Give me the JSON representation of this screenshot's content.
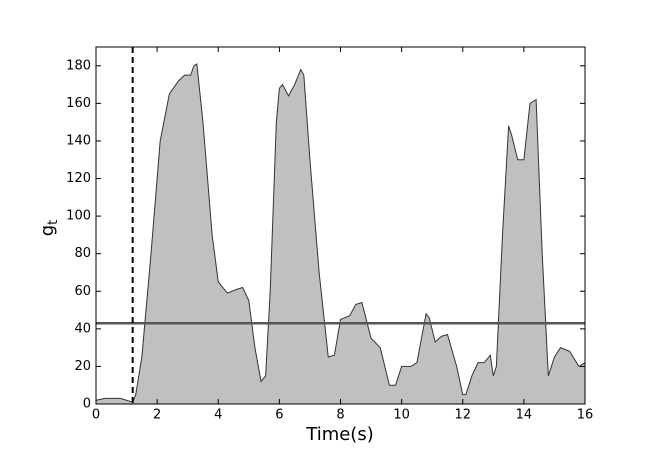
{
  "chart_data": {
    "type": "area",
    "x_label": "Time(s)",
    "y_label": "g",
    "y_label_sub": "t",
    "x": [
      0,
      0.3,
      0.8,
      1.0,
      1.2,
      1.3,
      1.5,
      1.8,
      2.1,
      2.4,
      2.7,
      2.9,
      3.1,
      3.2,
      3.3,
      3.5,
      3.8,
      4.0,
      4.3,
      4.6,
      4.8,
      5.0,
      5.2,
      5.4,
      5.55,
      5.7,
      5.9,
      6.0,
      6.1,
      6.3,
      6.5,
      6.7,
      6.8,
      7.0,
      7.3,
      7.5,
      7.6,
      7.8,
      8.0,
      8.3,
      8.5,
      8.7,
      9.0,
      9.3,
      9.6,
      9.8,
      10.0,
      10.3,
      10.5,
      10.8,
      10.9,
      11.1,
      11.3,
      11.5,
      11.8,
      12.0,
      12.1,
      12.3,
      12.5,
      12.7,
      12.9,
      13.0,
      13.1,
      13.3,
      13.5,
      13.6,
      13.8,
      14.0,
      14.2,
      14.4,
      14.6,
      14.8,
      15.0,
      15.2,
      15.5,
      15.8,
      16
    ],
    "values": [
      2,
      3,
      3,
      2,
      1,
      5,
      25,
      80,
      140,
      165,
      172,
      175,
      175,
      180,
      181,
      150,
      90,
      65,
      59,
      61,
      62,
      55,
      30,
      12,
      15,
      60,
      150,
      168,
      170,
      164,
      170,
      178,
      175,
      130,
      70,
      40,
      25,
      26,
      45,
      47,
      53,
      54,
      35,
      30,
      10,
      10,
      20,
      20,
      22,
      48,
      46,
      33,
      36,
      37,
      20,
      5,
      5,
      15,
      22,
      22,
      26,
      15,
      20,
      90,
      148,
      143,
      130,
      130,
      160,
      162,
      80,
      15,
      25,
      30,
      28,
      20,
      22
    ],
    "fill": "#c0c0c0",
    "line_color": "#333333",
    "hline": 43,
    "hline_color": "#555555",
    "vline": 1.2,
    "vline_color": "#000000",
    "xlim": [
      0,
      16
    ],
    "xticks": [
      0,
      2,
      4,
      6,
      8,
      10,
      12,
      14,
      16
    ],
    "ylim": [
      0,
      190
    ],
    "yticks": [
      0,
      20,
      40,
      60,
      80,
      100,
      120,
      140,
      160,
      180
    ]
  }
}
